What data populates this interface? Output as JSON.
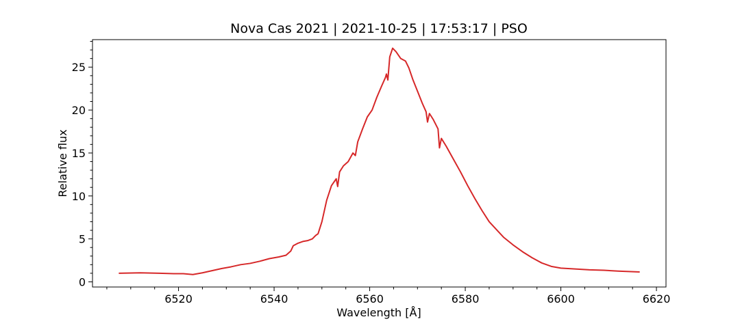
{
  "chart_data": {
    "type": "line",
    "title": "Nova Cas 2021 | 2021-10-25 | 17:53:17 | PSO",
    "xlabel": "Wavelength [Å]",
    "ylabel": "Relative flux",
    "xlim": [
      6502,
      6622
    ],
    "ylim": [
      -0.6,
      28.2
    ],
    "xticks": [
      6520,
      6540,
      6560,
      6580,
      6600,
      6620
    ],
    "yticks": [
      0,
      5,
      10,
      15,
      20,
      25
    ],
    "x_minor_step": 5,
    "y_minor_step": 1,
    "grid": false,
    "series_color": "#d62728",
    "series": [
      {
        "points": [
          [
            6507.5,
            1.0
          ],
          [
            6512,
            1.05
          ],
          [
            6516,
            1.0
          ],
          [
            6519,
            0.95
          ],
          [
            6521,
            0.95
          ],
          [
            6523,
            0.85
          ],
          [
            6525,
            1.05
          ],
          [
            6527,
            1.3
          ],
          [
            6529,
            1.55
          ],
          [
            6531,
            1.75
          ],
          [
            6533,
            2.0
          ],
          [
            6535,
            2.15
          ],
          [
            6537,
            2.4
          ],
          [
            6539,
            2.7
          ],
          [
            6541,
            2.9
          ],
          [
            6542.5,
            3.1
          ],
          [
            6543.5,
            3.6
          ],
          [
            6544,
            4.2
          ],
          [
            6545,
            4.5
          ],
          [
            6546,
            4.7
          ],
          [
            6547,
            4.8
          ],
          [
            6548,
            5.0
          ],
          [
            6548.7,
            5.4
          ],
          [
            6549.2,
            5.6
          ],
          [
            6550,
            7.0
          ],
          [
            6551,
            9.5
          ],
          [
            6552,
            11.2
          ],
          [
            6553,
            12.0
          ],
          [
            6553.3,
            11.1
          ],
          [
            6553.7,
            12.8
          ],
          [
            6554.5,
            13.5
          ],
          [
            6555.5,
            14.0
          ],
          [
            6556.5,
            15.0
          ],
          [
            6557,
            14.7
          ],
          [
            6557.5,
            16.3
          ],
          [
            6558.5,
            17.8
          ],
          [
            6559.5,
            19.2
          ],
          [
            6560.5,
            20.0
          ],
          [
            6561.5,
            21.5
          ],
          [
            6562.5,
            22.8
          ],
          [
            6563.3,
            23.8
          ],
          [
            6563.5,
            24.2
          ],
          [
            6563.8,
            23.5
          ],
          [
            6564.2,
            26.2
          ],
          [
            6564.8,
            27.2
          ],
          [
            6565.5,
            26.8
          ],
          [
            6566.5,
            26.0
          ],
          [
            6567.5,
            25.7
          ],
          [
            6568.2,
            24.9
          ],
          [
            6569,
            23.6
          ],
          [
            6570,
            22.2
          ],
          [
            6571,
            20.8
          ],
          [
            6571.8,
            19.8
          ],
          [
            6572.1,
            18.6
          ],
          [
            6572.5,
            19.6
          ],
          [
            6573.3,
            18.9
          ],
          [
            6574.3,
            17.8
          ],
          [
            6574.6,
            15.6
          ],
          [
            6575,
            16.7
          ],
          [
            6576,
            15.8
          ],
          [
            6577.5,
            14.3
          ],
          [
            6579,
            12.8
          ],
          [
            6580.5,
            11.2
          ],
          [
            6582,
            9.7
          ],
          [
            6583.5,
            8.3
          ],
          [
            6585,
            7.0
          ],
          [
            6586.5,
            6.1
          ],
          [
            6588,
            5.2
          ],
          [
            6590,
            4.3
          ],
          [
            6592,
            3.5
          ],
          [
            6594,
            2.8
          ],
          [
            6596,
            2.2
          ],
          [
            6598,
            1.8
          ],
          [
            6600,
            1.6
          ],
          [
            6603,
            1.5
          ],
          [
            6606,
            1.4
          ],
          [
            6609,
            1.35
          ],
          [
            6612,
            1.25
          ],
          [
            6616.5,
            1.15
          ]
        ]
      }
    ]
  }
}
